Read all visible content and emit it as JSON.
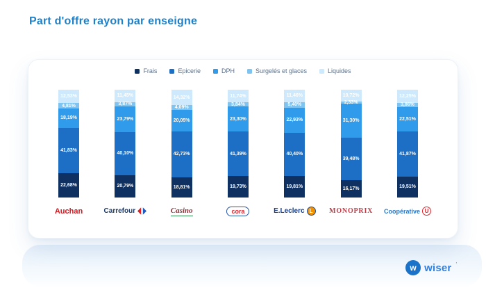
{
  "page": {
    "title": "Part d'offre rayon par enseigne"
  },
  "chart_data": {
    "type": "bar",
    "stacked": true,
    "unit": "%",
    "legend_position": "top",
    "value_label_format": "french-decimal-comma-percent",
    "categories": [
      "Auchan",
      "Carrefour",
      "Casino",
      "Cora",
      "E.Leclerc",
      "Monoprix",
      "Coopérative U"
    ],
    "series": [
      {
        "name": "Frais",
        "color": "#0e3162",
        "values": [
          22.68,
          20.79,
          18.81,
          19.73,
          19.81,
          16.17,
          19.51
        ]
      },
      {
        "name": "Epicerie",
        "color": "#1d6ec5",
        "values": [
          41.83,
          40.1,
          42.73,
          41.39,
          40.4,
          39.48,
          41.87
        ]
      },
      {
        "name": "DPH",
        "color": "#2f9bea",
        "values": [
          18.19,
          23.79,
          20.05,
          23.3,
          22.93,
          31.3,
          22.51
        ]
      },
      {
        "name": "Surgelés et glaces",
        "color": "#7fc4f1",
        "values": [
          4.81,
          3.87,
          4.09,
          3.84,
          5.4,
          2.33,
          3.86
        ]
      },
      {
        "name": "Liquides",
        "color": "#cde9fb",
        "values": [
          12.53,
          11.45,
          14.32,
          11.74,
          11.46,
          10.72,
          12.25
        ]
      }
    ],
    "ylim": [
      0,
      100
    ]
  },
  "logos": [
    {
      "id": "auchan",
      "text": "Auchan"
    },
    {
      "id": "carrefour",
      "text": "Carrefour"
    },
    {
      "id": "casino",
      "text": "Casino"
    },
    {
      "id": "cora",
      "text": "cora"
    },
    {
      "id": "leclerc",
      "text": "E.Leclerc",
      "badge": "L"
    },
    {
      "id": "monoprix",
      "text": "MONOPRIX"
    },
    {
      "id": "cooperative-u",
      "text": "Coopérative",
      "badge": "U"
    }
  ],
  "footer": {
    "initial": "w",
    "brand": "wiser",
    "mark": "’"
  },
  "colors": {
    "title": "#1e80c9",
    "legend_text": "#5c6f86",
    "accent": "#1a73c8"
  }
}
